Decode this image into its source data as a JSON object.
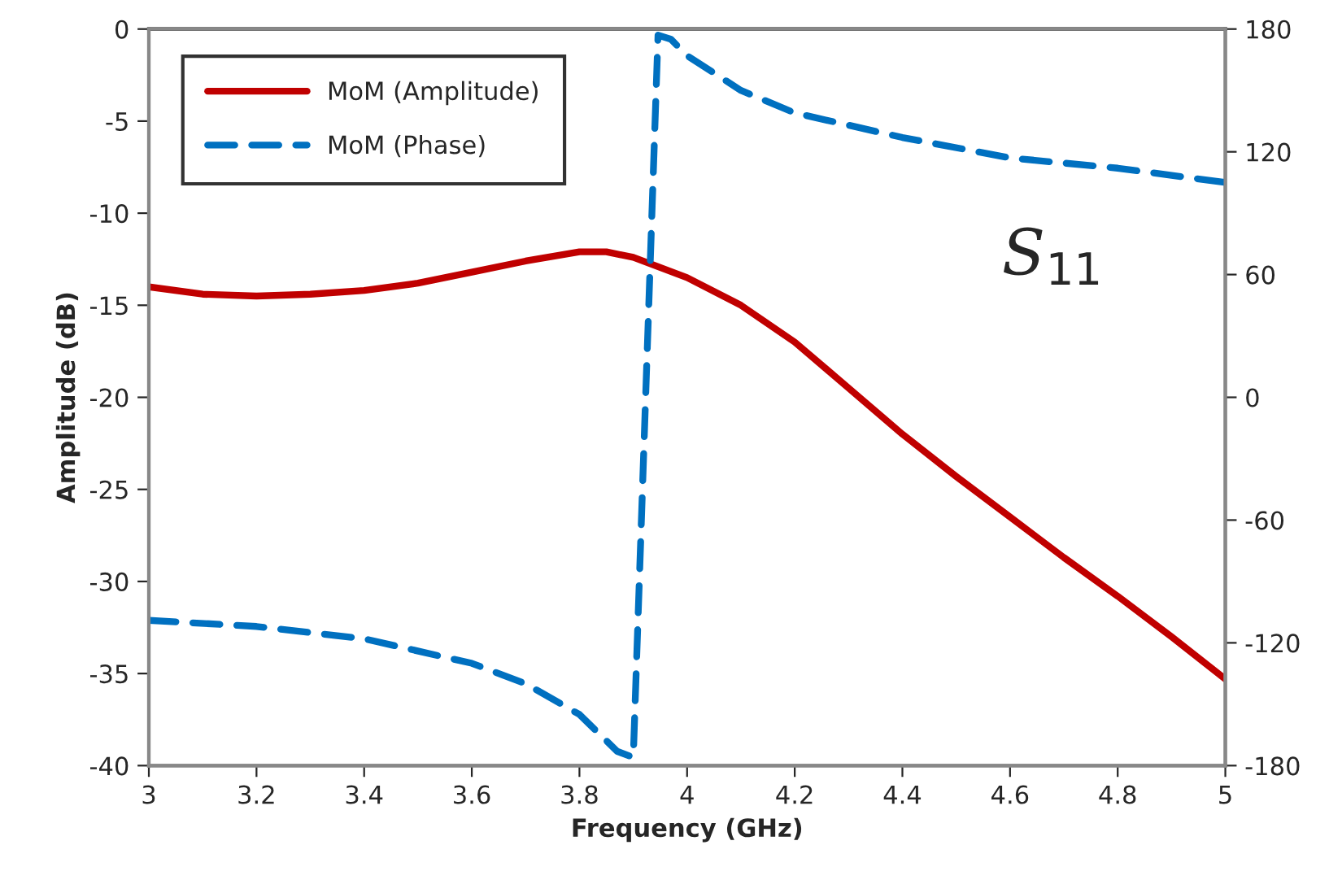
{
  "chart_data": {
    "type": "line",
    "xlabel": "Frequency (GHz)",
    "ylabel": "Amplitude (dB)",
    "xlim": [
      3,
      5
    ],
    "xticks": [
      3,
      3.2,
      3.4,
      3.6,
      3.8,
      4,
      4.2,
      4.4,
      4.6,
      4.8,
      5
    ],
    "ylim": [
      -40,
      0
    ],
    "yticks": [
      -40,
      -35,
      -30,
      -25,
      -20,
      -15,
      -10,
      -5,
      0
    ],
    "y2lim": [
      -180,
      180
    ],
    "y2ticks": [
      -180,
      -120,
      -60,
      0,
      60,
      120,
      180
    ],
    "grid": false,
    "legend": "top left",
    "marker": "none",
    "annotations": [
      "S$_{11}$"
    ],
    "series": [
      {
        "name": "MoM (Amplitude)",
        "color": "#c00000",
        "line_style": "solid",
        "x": [
          3.0,
          3.1,
          3.2,
          3.3,
          3.4,
          3.5,
          3.6,
          3.7,
          3.8,
          3.85,
          3.9,
          4.0,
          4.1,
          4.2,
          4.3,
          4.4,
          4.5,
          4.6,
          4.7,
          4.8,
          4.9,
          5.0
        ],
        "values": [
          -14.0,
          -14.4,
          -14.5,
          -14.4,
          -14.2,
          -13.8,
          -13.2,
          -12.6,
          -12.1,
          -12.1,
          -12.4,
          -13.5,
          -15.0,
          -17.0,
          -19.5,
          -22.0,
          -24.3,
          -26.5,
          -28.7,
          -30.8,
          -33.0,
          -35.3
        ]
      },
      {
        "name": "MoM (Phase)",
        "color": "#0070c0",
        "line_style": "dashed",
        "axis": "y2",
        "x": [
          3.0,
          3.2,
          3.4,
          3.6,
          3.7,
          3.8,
          3.87,
          3.9,
          3.946,
          3.97,
          4.0,
          4.1,
          4.2,
          4.4,
          4.6,
          4.8,
          5.0
        ],
        "values": [
          -109,
          -112,
          -118,
          -130,
          -140,
          -155,
          -173,
          -176,
          177,
          175,
          167,
          150,
          139,
          127,
          117,
          112,
          105
        ]
      }
    ]
  }
}
